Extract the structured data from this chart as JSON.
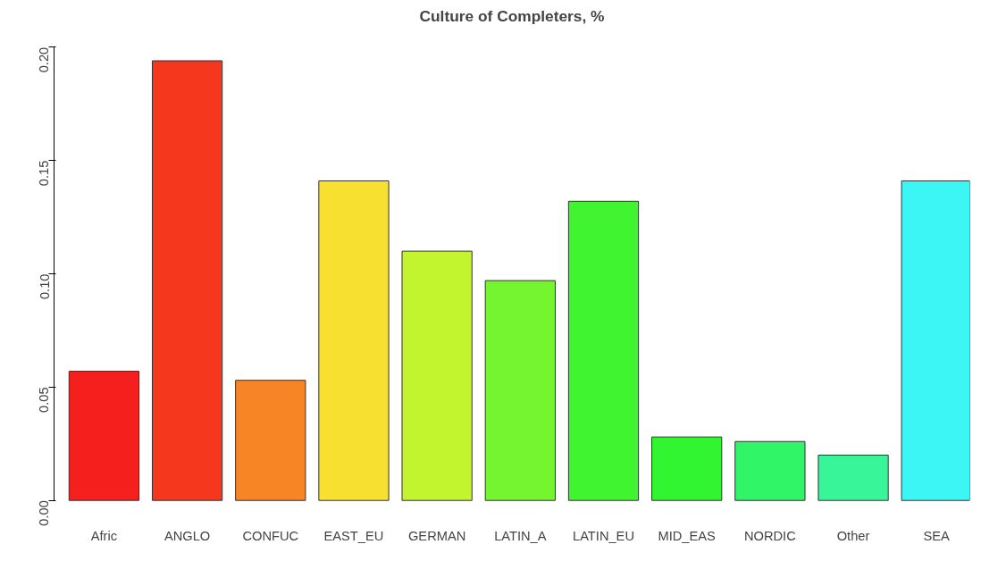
{
  "chart_data": {
    "type": "bar",
    "title": "Culture of Completers, %",
    "categories": [
      "Afric",
      "ANGLO",
      "CONFUC",
      "EAST_EU",
      "GERMAN",
      "LATIN_A",
      "LATIN_EU",
      "MID_EAS",
      "NORDIC",
      "Other",
      "SEA"
    ],
    "values": [
      0.057,
      0.194,
      0.053,
      0.141,
      0.11,
      0.097,
      0.132,
      0.028,
      0.026,
      0.02,
      0.141
    ],
    "colors": [
      "#f5201e",
      "#f5371e",
      "#f78525",
      "#f8e030",
      "#c3f52e",
      "#74f530",
      "#40f530",
      "#30f530",
      "#30f566",
      "#38f59a",
      "#3cf5f5"
    ],
    "ylim": [
      0,
      0.2
    ],
    "yticks": [
      {
        "value": 0,
        "label": "0.00"
      },
      {
        "value": 0.05,
        "label": "0.05"
      },
      {
        "value": 0.1,
        "label": "0.10"
      },
      {
        "value": 0.15,
        "label": "0.15"
      },
      {
        "value": 0.2,
        "label": "0.20"
      }
    ],
    "grid": false
  }
}
